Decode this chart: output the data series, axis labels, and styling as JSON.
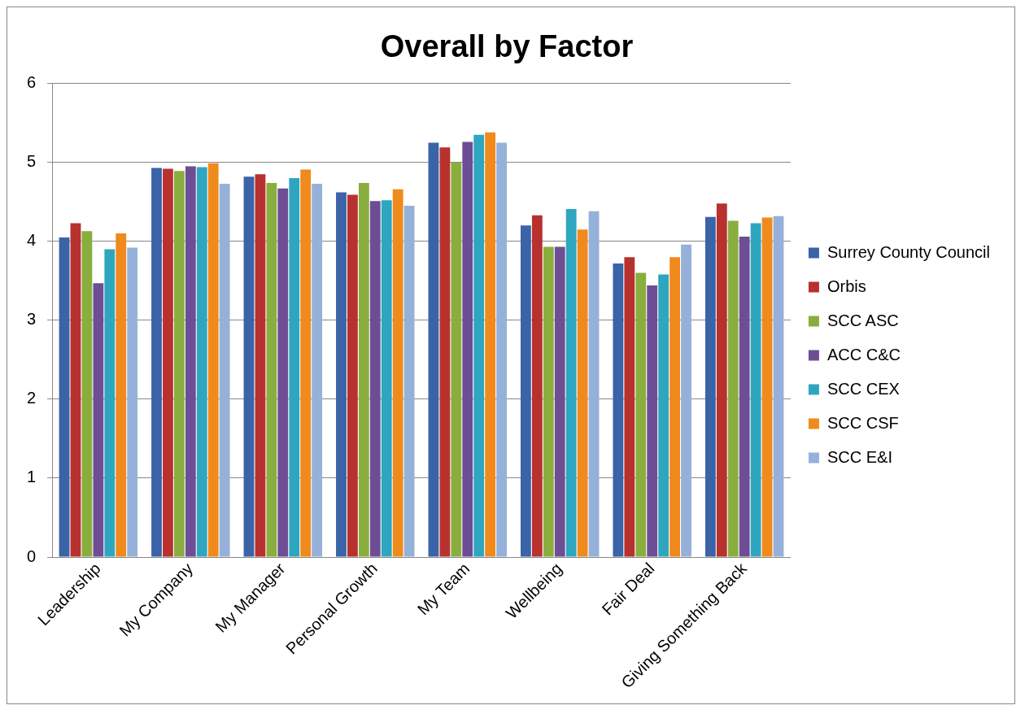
{
  "chart_data": {
    "type": "bar",
    "title": "Overall by Factor",
    "categories": [
      "Leadership",
      "My Company",
      "My Manager",
      "Personal Growth",
      "My Team",
      "Wellbeing",
      "Fair Deal",
      "Giving Something Back"
    ],
    "series": [
      {
        "name": "Surrey County Council",
        "color": "#3a63a8",
        "values": [
          4.05,
          4.93,
          4.82,
          4.62,
          5.25,
          4.2,
          3.72,
          4.31
        ]
      },
      {
        "name": "Orbis",
        "color": "#b8312f",
        "values": [
          4.23,
          4.92,
          4.85,
          4.59,
          5.19,
          4.33,
          3.8,
          4.48
        ]
      },
      {
        "name": "SCC ASC",
        "color": "#8aae3e",
        "values": [
          4.13,
          4.89,
          4.74,
          4.74,
          5.0,
          3.93,
          3.6,
          4.26
        ]
      },
      {
        "name": "ACC C&C",
        "color": "#6d4e94",
        "values": [
          3.47,
          4.95,
          4.67,
          4.51,
          5.26,
          3.93,
          3.44,
          4.06
        ]
      },
      {
        "name": "SCC CEX",
        "color": "#2fa6c0",
        "values": [
          3.9,
          4.94,
          4.8,
          4.52,
          5.35,
          4.41,
          3.58,
          4.23
        ]
      },
      {
        "name": "SCC CSF",
        "color": "#f08a1c",
        "values": [
          4.1,
          4.99,
          4.91,
          4.66,
          5.38,
          4.15,
          3.8,
          4.3
        ]
      },
      {
        "name": "SCC E&I",
        "color": "#96b1d9",
        "values": [
          3.92,
          4.73,
          4.73,
          4.45,
          5.25,
          4.38,
          3.96,
          4.32
        ]
      }
    ],
    "ylim": [
      0,
      6
    ],
    "yticks": [
      0,
      1,
      2,
      3,
      4,
      5,
      6
    ],
    "grid": "y",
    "legend": "right"
  }
}
